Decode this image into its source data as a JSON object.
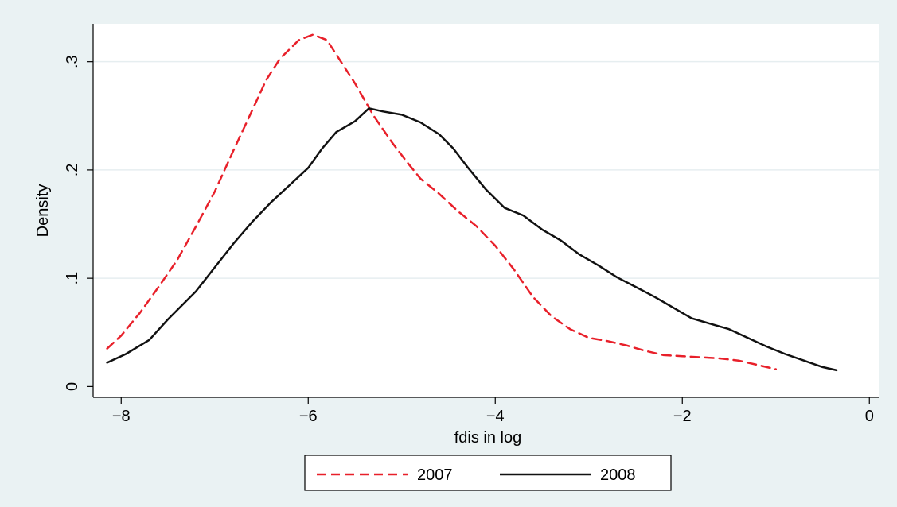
{
  "chart_data": {
    "type": "line",
    "xlabel": "fdis in log",
    "ylabel": "Density",
    "xlim": [
      -8.3,
      0.1
    ],
    "ylim": [
      -0.01,
      0.335
    ],
    "x_ticks": [
      -8,
      -6,
      -4,
      -2,
      0
    ],
    "x_tick_labels": [
      "−8",
      "−6",
      "−4",
      "−2",
      "0"
    ],
    "y_ticks": [
      0,
      0.1,
      0.2,
      0.3
    ],
    "y_tick_labels": [
      "0",
      ".1",
      ".2",
      ".3"
    ],
    "grid": "horizontal",
    "legend_position": "bottom",
    "series": [
      {
        "name": "2007",
        "color": "#e8202a",
        "style": "dashed",
        "points": [
          [
            -8.15,
            0.035
          ],
          [
            -8.0,
            0.047
          ],
          [
            -7.8,
            0.068
          ],
          [
            -7.6,
            0.092
          ],
          [
            -7.4,
            0.117
          ],
          [
            -7.2,
            0.148
          ],
          [
            -7.0,
            0.18
          ],
          [
            -6.8,
            0.218
          ],
          [
            -6.6,
            0.255
          ],
          [
            -6.45,
            0.283
          ],
          [
            -6.3,
            0.303
          ],
          [
            -6.1,
            0.32
          ],
          [
            -5.95,
            0.325
          ],
          [
            -5.8,
            0.32
          ],
          [
            -5.65,
            0.3
          ],
          [
            -5.5,
            0.28
          ],
          [
            -5.3,
            0.25
          ],
          [
            -5.1,
            0.225
          ],
          [
            -4.95,
            0.208
          ],
          [
            -4.8,
            0.192
          ],
          [
            -4.6,
            0.178
          ],
          [
            -4.4,
            0.162
          ],
          [
            -4.2,
            0.148
          ],
          [
            -4.0,
            0.13
          ],
          [
            -3.8,
            0.108
          ],
          [
            -3.6,
            0.083
          ],
          [
            -3.4,
            0.065
          ],
          [
            -3.2,
            0.053
          ],
          [
            -3.0,
            0.045
          ],
          [
            -2.8,
            0.042
          ],
          [
            -2.6,
            0.038
          ],
          [
            -2.4,
            0.033
          ],
          [
            -2.2,
            0.029
          ],
          [
            -2.0,
            0.028
          ],
          [
            -1.8,
            0.027
          ],
          [
            -1.6,
            0.026
          ],
          [
            -1.4,
            0.024
          ],
          [
            -1.2,
            0.02
          ],
          [
            -1.0,
            0.016
          ]
        ]
      },
      {
        "name": "2008",
        "color": "#111111",
        "style": "solid",
        "points": [
          [
            -8.15,
            0.022
          ],
          [
            -7.95,
            0.03
          ],
          [
            -7.7,
            0.043
          ],
          [
            -7.5,
            0.062
          ],
          [
            -7.2,
            0.088
          ],
          [
            -7.0,
            0.11
          ],
          [
            -6.8,
            0.132
          ],
          [
            -6.6,
            0.152
          ],
          [
            -6.4,
            0.17
          ],
          [
            -6.2,
            0.186
          ],
          [
            -6.0,
            0.202
          ],
          [
            -5.85,
            0.22
          ],
          [
            -5.7,
            0.235
          ],
          [
            -5.5,
            0.245
          ],
          [
            -5.35,
            0.257
          ],
          [
            -5.2,
            0.254
          ],
          [
            -5.0,
            0.251
          ],
          [
            -4.8,
            0.244
          ],
          [
            -4.6,
            0.233
          ],
          [
            -4.45,
            0.22
          ],
          [
            -4.3,
            0.203
          ],
          [
            -4.1,
            0.182
          ],
          [
            -3.9,
            0.165
          ],
          [
            -3.7,
            0.158
          ],
          [
            -3.5,
            0.145
          ],
          [
            -3.3,
            0.135
          ],
          [
            -3.1,
            0.122
          ],
          [
            -2.9,
            0.112
          ],
          [
            -2.7,
            0.101
          ],
          [
            -2.5,
            0.092
          ],
          [
            -2.3,
            0.083
          ],
          [
            -2.1,
            0.073
          ],
          [
            -1.9,
            0.063
          ],
          [
            -1.7,
            0.058
          ],
          [
            -1.5,
            0.053
          ],
          [
            -1.3,
            0.045
          ],
          [
            -1.1,
            0.037
          ],
          [
            -0.9,
            0.03
          ],
          [
            -0.7,
            0.024
          ],
          [
            -0.5,
            0.018
          ],
          [
            -0.35,
            0.015
          ]
        ]
      }
    ]
  }
}
